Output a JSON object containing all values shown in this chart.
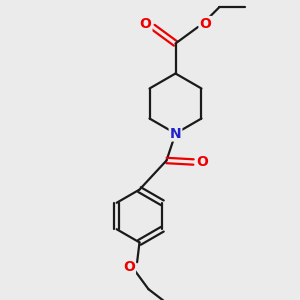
{
  "bg_color": "#ebebeb",
  "bond_color": "#1a1a1a",
  "bond_width": 1.6,
  "o_color": "#ee0000",
  "n_color": "#2222cc",
  "figsize": [
    3.0,
    3.0
  ],
  "dpi": 100,
  "xlim": [
    0,
    10
  ],
  "ylim": [
    0,
    10
  ]
}
